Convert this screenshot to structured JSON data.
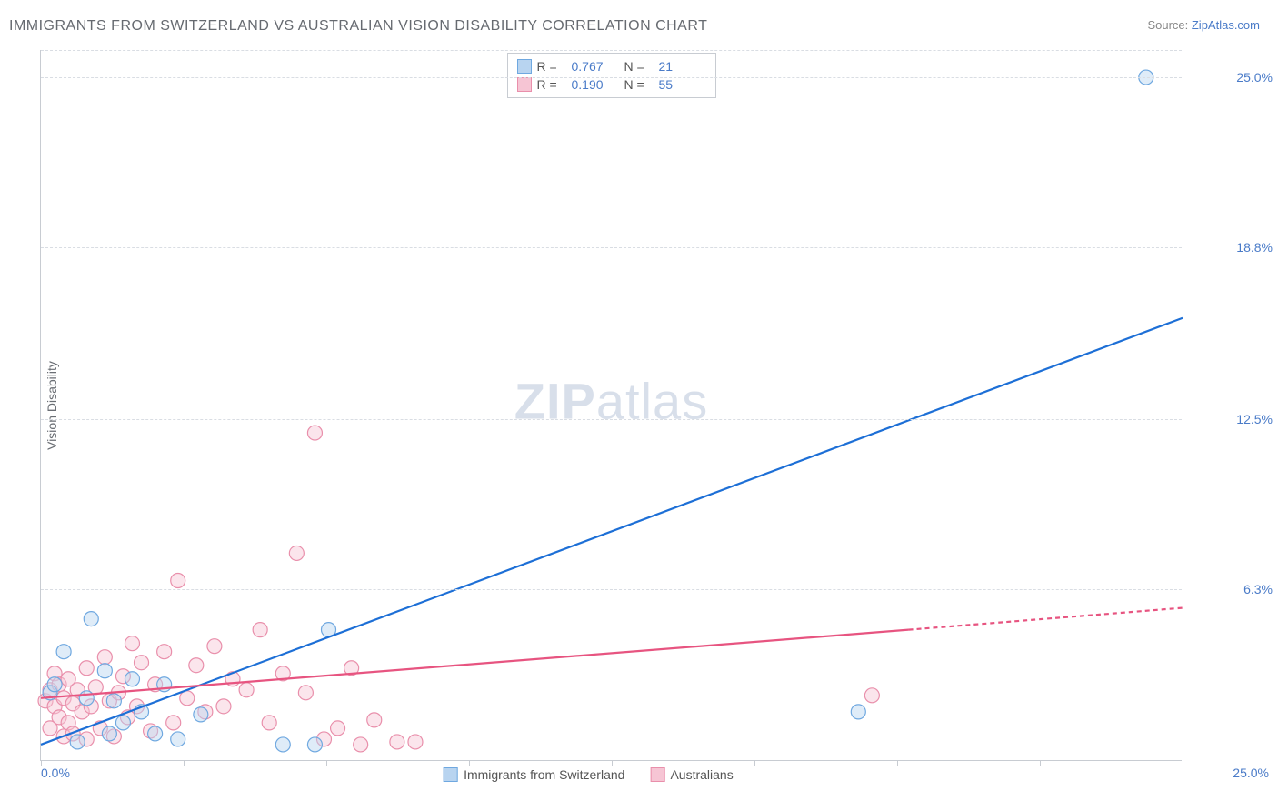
{
  "header": {
    "title": "IMMIGRANTS FROM SWITZERLAND VS AUSTRALIAN VISION DISABILITY CORRELATION CHART",
    "source_prefix": "Source: ",
    "source_link": "ZipAtlas.com"
  },
  "axes": {
    "ylabel": "Vision Disability",
    "x_min_label": "0.0%",
    "x_max_label": "25.0%",
    "xlim": [
      0,
      25
    ],
    "ylim": [
      0,
      26
    ],
    "y_ticks": [
      {
        "value": 6.3,
        "label": "6.3%"
      },
      {
        "value": 12.5,
        "label": "12.5%"
      },
      {
        "value": 18.8,
        "label": "18.8%"
      },
      {
        "value": 25.0,
        "label": "25.0%"
      }
    ],
    "x_tick_marks": [
      0,
      3.125,
      6.25,
      9.375,
      12.5,
      15.625,
      18.75,
      21.875,
      25
    ],
    "grid_color": "#d9dde3",
    "axis_color": "#c8ccd2"
  },
  "watermark": {
    "part1": "ZIP",
    "part2": "atlas",
    "color": "#b9c6d9"
  },
  "series": {
    "blue": {
      "label": "Immigrants from Switzerland",
      "fill": "#b8d4f0",
      "stroke": "#6fa8e0",
      "line_color": "#1d6fd6",
      "R_key": "R =",
      "R": "0.767",
      "N_key": "N =",
      "N": "21",
      "points": [
        {
          "x": 0.2,
          "y": 2.5
        },
        {
          "x": 0.3,
          "y": 2.8
        },
        {
          "x": 0.5,
          "y": 4.0
        },
        {
          "x": 0.8,
          "y": 0.7
        },
        {
          "x": 1.0,
          "y": 2.3
        },
        {
          "x": 1.1,
          "y": 5.2
        },
        {
          "x": 1.4,
          "y": 3.3
        },
        {
          "x": 1.5,
          "y": 1.0
        },
        {
          "x": 1.6,
          "y": 2.2
        },
        {
          "x": 1.8,
          "y": 1.4
        },
        {
          "x": 2.0,
          "y": 3.0
        },
        {
          "x": 2.2,
          "y": 1.8
        },
        {
          "x": 2.5,
          "y": 1.0
        },
        {
          "x": 2.7,
          "y": 2.8
        },
        {
          "x": 3.0,
          "y": 0.8
        },
        {
          "x": 3.5,
          "y": 1.7
        },
        {
          "x": 5.3,
          "y": 0.6
        },
        {
          "x": 6.0,
          "y": 0.6
        },
        {
          "x": 6.3,
          "y": 4.8
        },
        {
          "x": 17.9,
          "y": 1.8
        },
        {
          "x": 24.2,
          "y": 25.0
        }
      ],
      "trend": {
        "x1": 0,
        "y1": 0.6,
        "x2": 25,
        "y2": 16.2,
        "dashed": false
      }
    },
    "pink": {
      "label": "Australians",
      "fill": "#f6c5d4",
      "stroke": "#e98fab",
      "line_color": "#e75480",
      "R_key": "R =",
      "R": "0.190",
      "N_key": "N =",
      "N": "55",
      "points": [
        {
          "x": 0.1,
          "y": 2.2
        },
        {
          "x": 0.2,
          "y": 1.2
        },
        {
          "x": 0.2,
          "y": 2.6
        },
        {
          "x": 0.3,
          "y": 2.0
        },
        {
          "x": 0.3,
          "y": 3.2
        },
        {
          "x": 0.4,
          "y": 1.6
        },
        {
          "x": 0.4,
          "y": 2.8
        },
        {
          "x": 0.5,
          "y": 0.9
        },
        {
          "x": 0.5,
          "y": 2.3
        },
        {
          "x": 0.6,
          "y": 1.4
        },
        {
          "x": 0.6,
          "y": 3.0
        },
        {
          "x": 0.7,
          "y": 2.1
        },
        {
          "x": 0.7,
          "y": 1.0
        },
        {
          "x": 0.8,
          "y": 2.6
        },
        {
          "x": 0.9,
          "y": 1.8
        },
        {
          "x": 1.0,
          "y": 0.8
        },
        {
          "x": 1.0,
          "y": 3.4
        },
        {
          "x": 1.1,
          "y": 2.0
        },
        {
          "x": 1.2,
          "y": 2.7
        },
        {
          "x": 1.3,
          "y": 1.2
        },
        {
          "x": 1.4,
          "y": 3.8
        },
        {
          "x": 1.5,
          "y": 2.2
        },
        {
          "x": 1.6,
          "y": 0.9
        },
        {
          "x": 1.7,
          "y": 2.5
        },
        {
          "x": 1.8,
          "y": 3.1
        },
        {
          "x": 1.9,
          "y": 1.6
        },
        {
          "x": 2.0,
          "y": 4.3
        },
        {
          "x": 2.1,
          "y": 2.0
        },
        {
          "x": 2.2,
          "y": 3.6
        },
        {
          "x": 2.4,
          "y": 1.1
        },
        {
          "x": 2.5,
          "y": 2.8
        },
        {
          "x": 2.7,
          "y": 4.0
        },
        {
          "x": 2.9,
          "y": 1.4
        },
        {
          "x": 3.0,
          "y": 6.6
        },
        {
          "x": 3.2,
          "y": 2.3
        },
        {
          "x": 3.4,
          "y": 3.5
        },
        {
          "x": 3.6,
          "y": 1.8
        },
        {
          "x": 3.8,
          "y": 4.2
        },
        {
          "x": 4.0,
          "y": 2.0
        },
        {
          "x": 4.2,
          "y": 3.0
        },
        {
          "x": 4.5,
          "y": 2.6
        },
        {
          "x": 4.8,
          "y": 4.8
        },
        {
          "x": 5.0,
          "y": 1.4
        },
        {
          "x": 5.3,
          "y": 3.2
        },
        {
          "x": 5.6,
          "y": 7.6
        },
        {
          "x": 5.8,
          "y": 2.5
        },
        {
          "x": 6.0,
          "y": 12.0
        },
        {
          "x": 6.2,
          "y": 0.8
        },
        {
          "x": 6.5,
          "y": 1.2
        },
        {
          "x": 6.8,
          "y": 3.4
        },
        {
          "x": 7.0,
          "y": 0.6
        },
        {
          "x": 7.3,
          "y": 1.5
        },
        {
          "x": 7.8,
          "y": 0.7
        },
        {
          "x": 8.2,
          "y": 0.7
        },
        {
          "x": 18.2,
          "y": 2.4
        }
      ],
      "trend_solid": {
        "x1": 0,
        "y1": 2.3,
        "x2": 19,
        "y2": 4.8
      },
      "trend_dash": {
        "x1": 19,
        "y1": 4.8,
        "x2": 25,
        "y2": 5.6
      }
    }
  },
  "style": {
    "marker_radius": 8,
    "marker_fill_opacity": 0.45,
    "marker_stroke_width": 1.2,
    "line_width": 2.2,
    "dash_pattern": "5,4",
    "title_color": "#666a70",
    "value_color": "#4a7bc8",
    "text_color": "#6a6e74"
  }
}
